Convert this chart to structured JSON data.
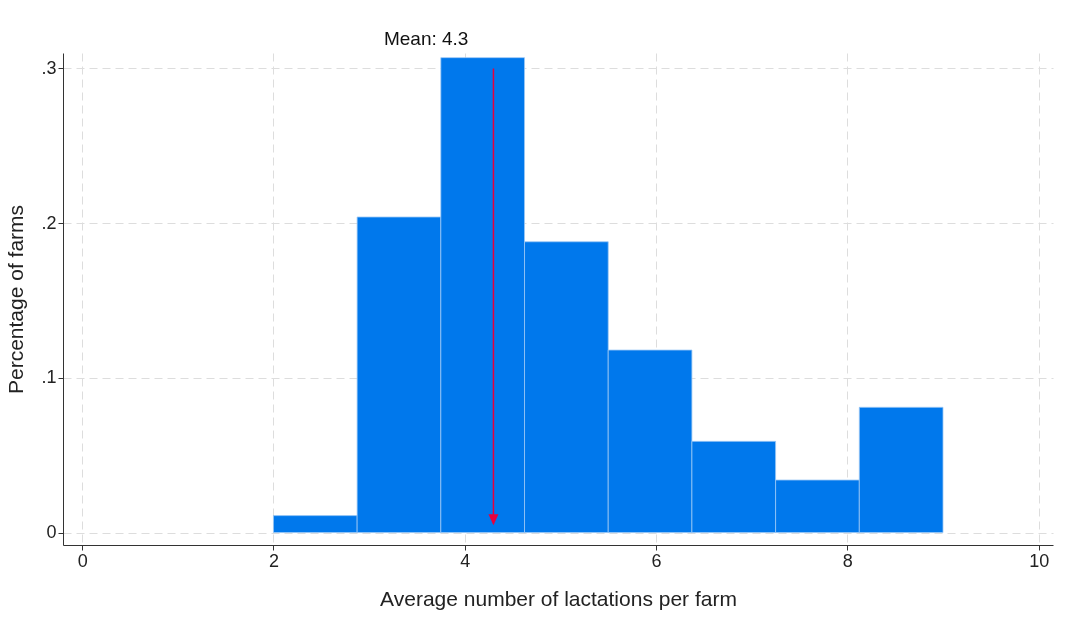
{
  "chart_data": {
    "type": "histogram",
    "xlabel": "Average number of lactations per farm",
    "ylabel": "Percentage of farms",
    "bins": [
      2,
      2.875,
      3.75,
      4.625,
      5.5,
      6.375,
      7.25,
      8.125,
      9
    ],
    "values": [
      0.011,
      0.204,
      0.307,
      0.188,
      0.118,
      0.059,
      0.034,
      0.081
    ],
    "color": "#0078ec",
    "xlim": [
      -0.2,
      10.15
    ],
    "ylim": [
      -0.008,
      0.31
    ],
    "xticks": [
      0,
      2,
      4,
      6,
      8,
      10
    ],
    "yticks": [
      {
        "value": 0,
        "label": "0"
      },
      {
        "value": 0.1,
        "label": ".1"
      },
      {
        "value": 0.2,
        "label": ".2"
      },
      {
        "value": 0.3,
        "label": ".3"
      }
    ],
    "grid": true,
    "ref_lines": [
      {
        "axis": "x",
        "value": 4.3,
        "label": "Mean: 4.3",
        "color": "#e8003d"
      }
    ]
  }
}
